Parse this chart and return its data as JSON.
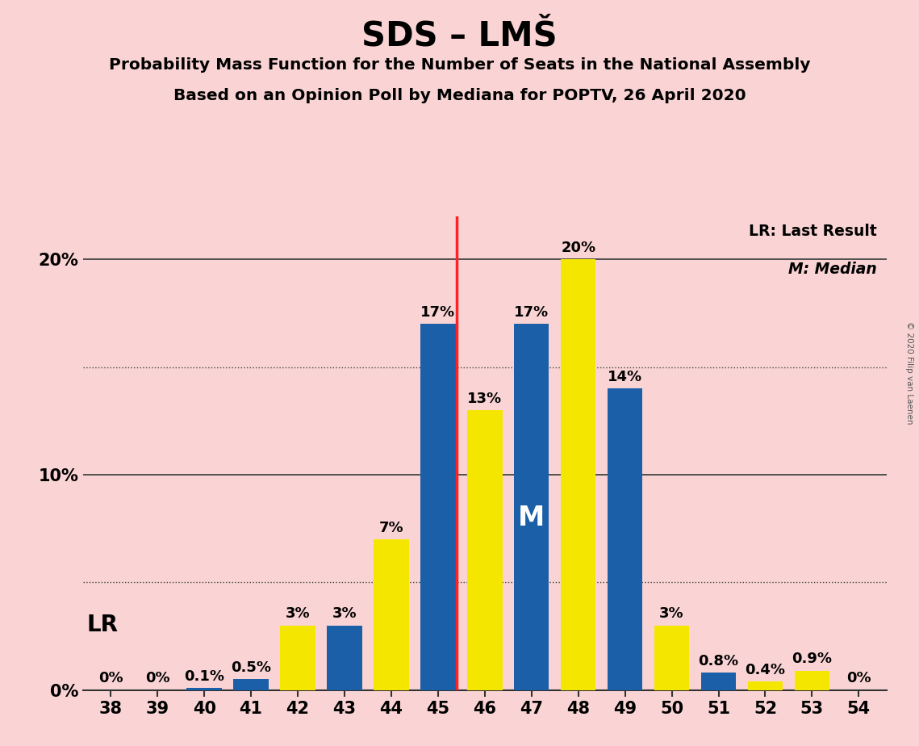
{
  "title": "SDS – LMŠ",
  "subtitle1": "Probability Mass Function for the Number of Seats in the National Assembly",
  "subtitle2": "Based on an Opinion Poll by Mediana for POPTV, 26 April 2020",
  "copyright": "© 2020 Filip van Laenen",
  "seats": [
    38,
    39,
    40,
    41,
    42,
    43,
    44,
    45,
    46,
    47,
    48,
    49,
    50,
    51,
    52,
    53,
    54
  ],
  "values": [
    0.0,
    0.0,
    0.1,
    0.5,
    3.0,
    3.0,
    7.0,
    17.0,
    13.0,
    17.0,
    20.0,
    14.0,
    3.0,
    0.8,
    0.4,
    0.9,
    0.0
  ],
  "bar_colors": [
    "#1a5fa8",
    "#1a5fa8",
    "#1a5fa8",
    "#1a5fa8",
    "#f5e600",
    "#1a5fa8",
    "#f5e600",
    "#1a5fa8",
    "#f5e600",
    "#1a5fa8",
    "#f5e600",
    "#1a5fa8",
    "#f5e600",
    "#1a5fa8",
    "#f5e600",
    "#f5e600",
    "#1a5fa8"
  ],
  "labels": [
    "0%",
    "0%",
    "0.1%",
    "0.5%",
    "3%",
    "3%",
    "7%",
    "17%",
    "13%",
    "17%",
    "20%",
    "14%",
    "3%",
    "0.8%",
    "0.4%",
    "0.9%",
    "0%"
  ],
  "lr_line_after_seat": 45,
  "median_seat": 47,
  "bar_color_pmf": "#1a5fa8",
  "bar_color_lr": "#f5e600",
  "background_color": "#fad4d4",
  "lr_line_color": "#ff2222",
  "ylim_max": 22,
  "bar_width": 0.75,
  "solid_lines": [
    10.0,
    20.0
  ],
  "dotted_lines": [
    5.0,
    15.0
  ],
  "yticks": [
    0,
    10,
    20
  ],
  "ytick_labels": [
    "0%",
    "10%",
    "20%"
  ]
}
